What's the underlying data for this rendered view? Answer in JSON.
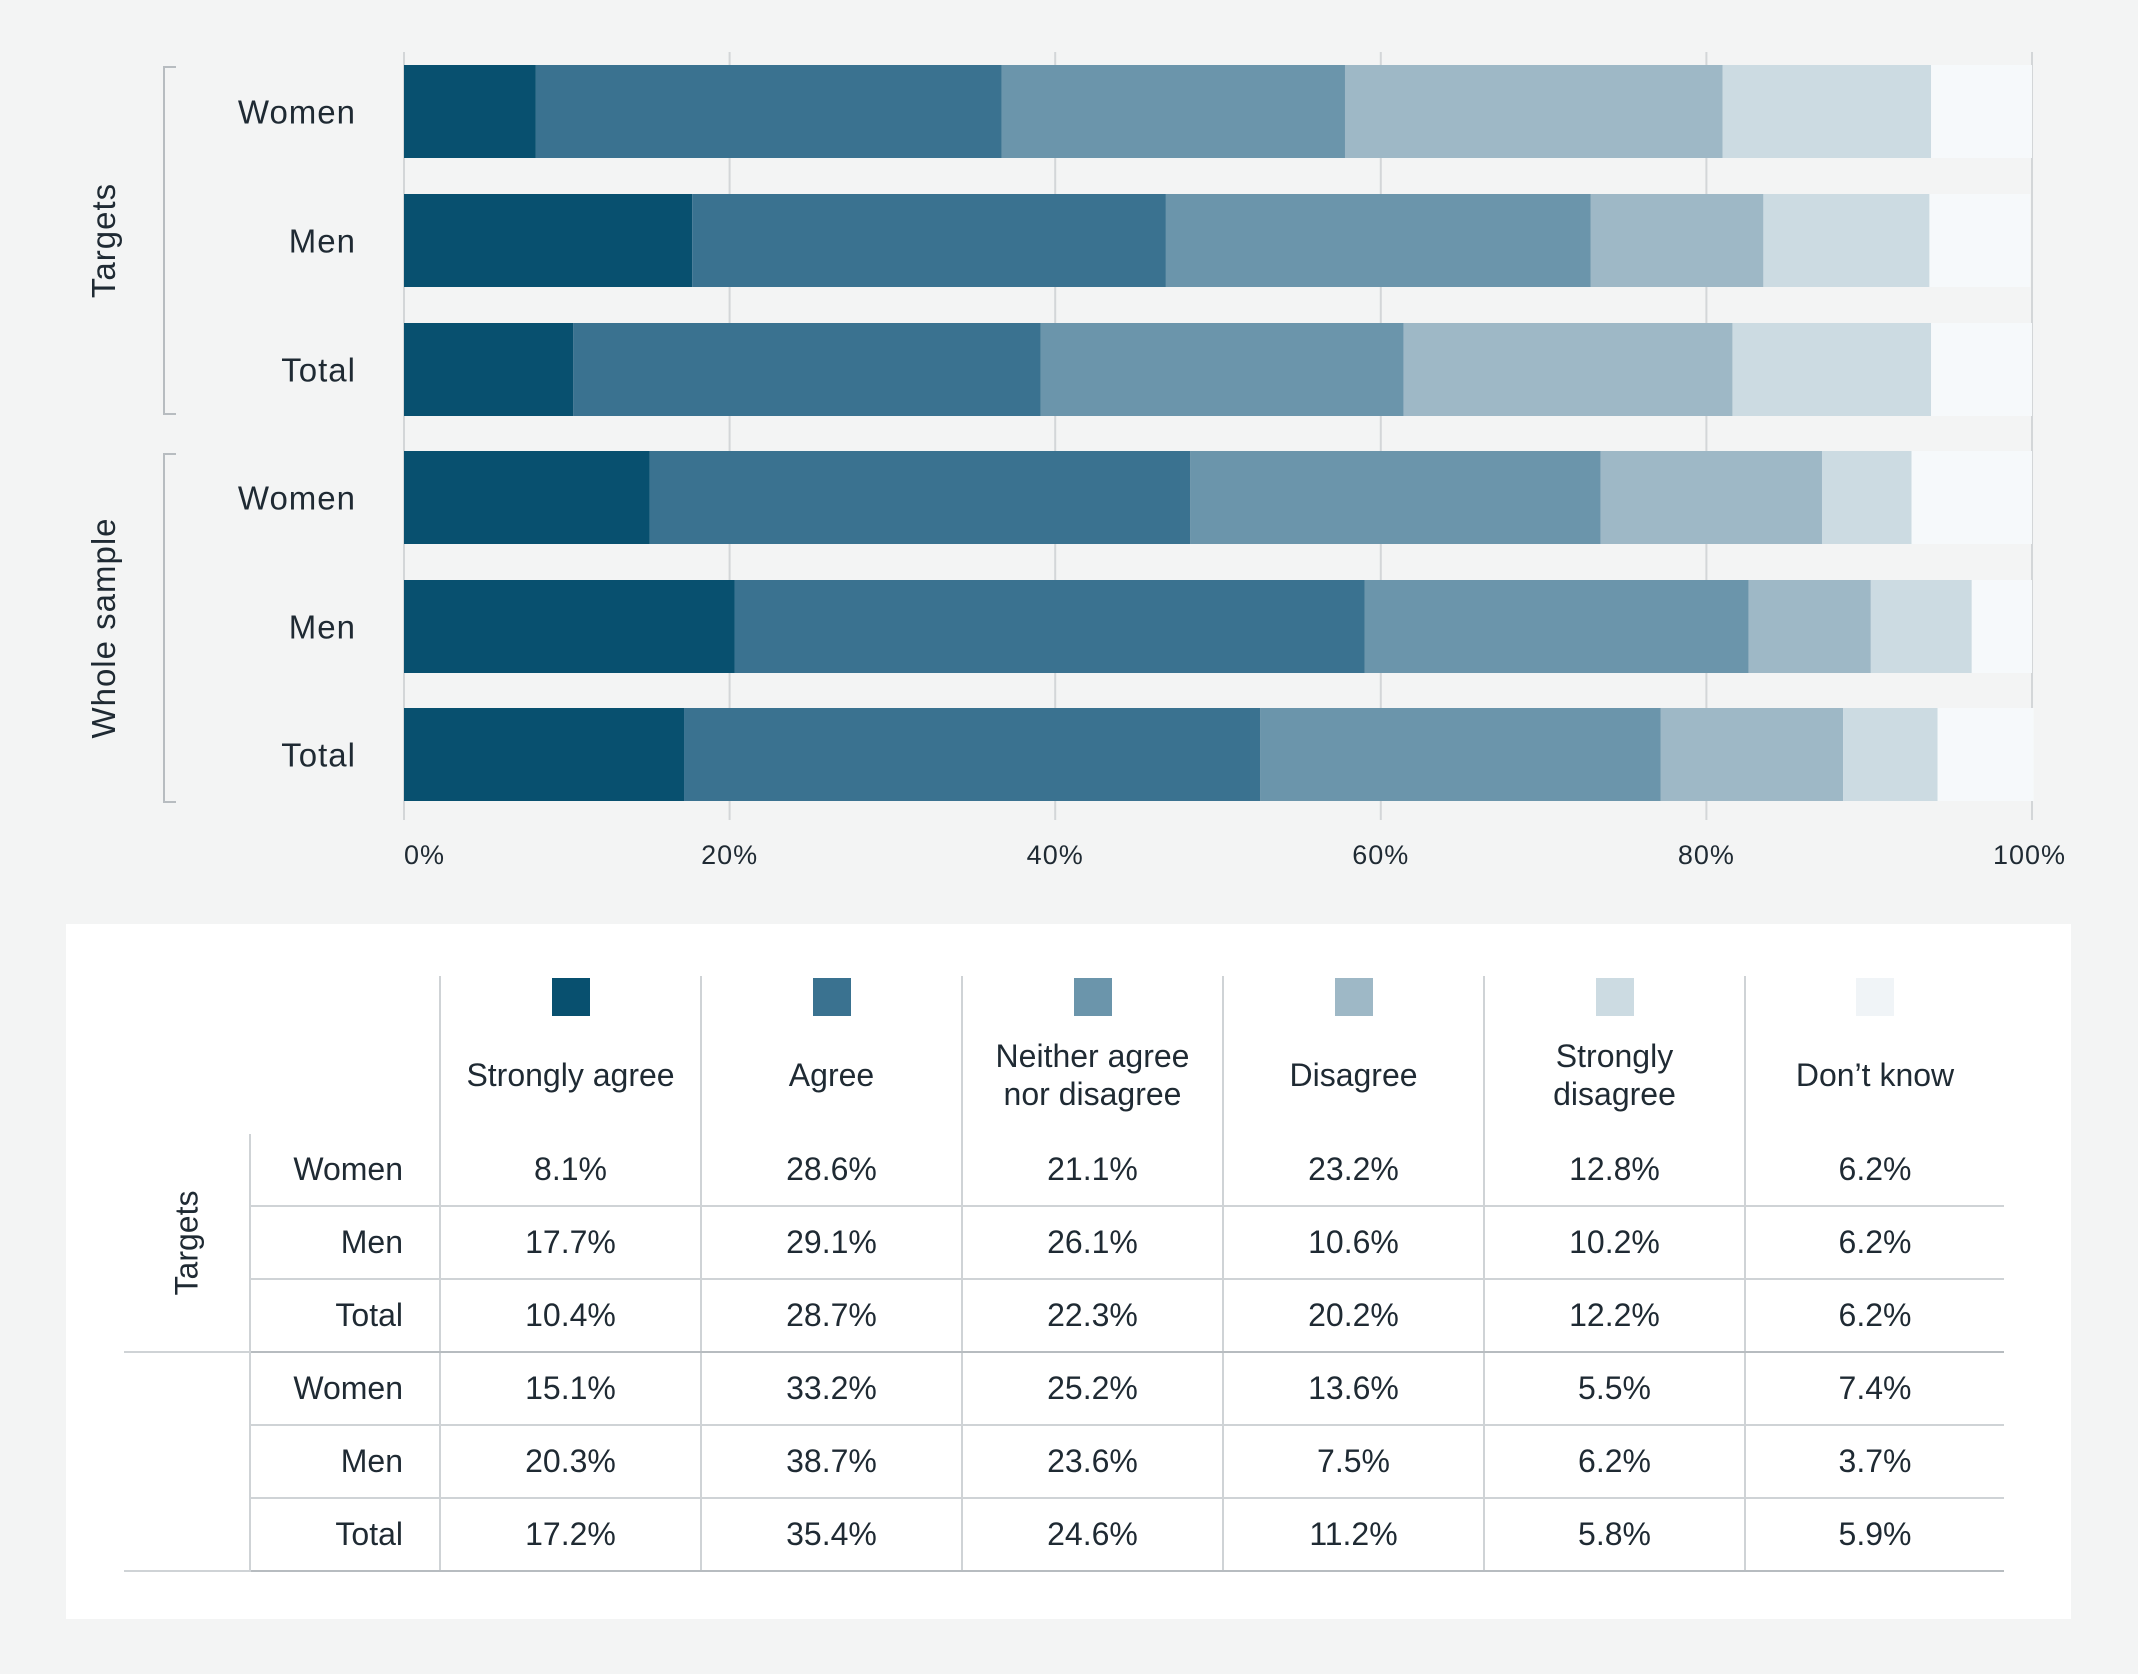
{
  "chart_data": {
    "type": "bar",
    "orientation": "horizontal",
    "stacked": true,
    "xlim": [
      0,
      100
    ],
    "x_ticks": [
      "0%",
      "20%",
      "40%",
      "60%",
      "80%",
      "100%"
    ],
    "groups": [
      {
        "name": "Targets",
        "rows": [
          "Women",
          "Men",
          "Total"
        ]
      },
      {
        "name": "Whole sample",
        "rows": [
          "Women",
          "Men",
          "Total"
        ]
      }
    ],
    "series": [
      {
        "name": "Strongly agree",
        "color": "#08506f",
        "values": [
          8.1,
          17.7,
          10.4,
          15.1,
          20.3,
          17.2
        ]
      },
      {
        "name": "Agree",
        "color": "#3a7290",
        "values": [
          28.6,
          29.1,
          28.7,
          33.2,
          38.7,
          35.4
        ]
      },
      {
        "name": "Neither agree\nnor disagree",
        "color": "#6b95ab",
        "values": [
          21.1,
          26.1,
          22.3,
          25.2,
          23.6,
          24.6
        ]
      },
      {
        "name": "Disagree",
        "color": "#9eb8c6",
        "values": [
          23.2,
          10.6,
          20.2,
          13.6,
          7.5,
          11.2
        ]
      },
      {
        "name": "Strongly\ndisagree",
        "color": "#ccdbe2",
        "values": [
          12.8,
          10.2,
          12.2,
          5.5,
          6.2,
          5.8
        ]
      },
      {
        "name": "Don’t know",
        "color": "#f6f9fb",
        "values": [
          6.2,
          6.2,
          6.2,
          7.4,
          3.7,
          5.9
        ]
      }
    ],
    "table_values": [
      [
        "8.1%",
        "28.6%",
        "21.1%",
        "23.2%",
        "12.8%",
        "6.2%"
      ],
      [
        "17.7%",
        "29.1%",
        "26.1%",
        "10.6%",
        "10.2%",
        "6.2%"
      ],
      [
        "10.4%",
        "28.7%",
        "22.3%",
        "20.2%",
        "12.2%",
        "6.2%"
      ],
      [
        "15.1%",
        "33.2%",
        "25.2%",
        "13.6%",
        "5.5%",
        "7.4%"
      ],
      [
        "20.3%",
        "38.7%",
        "23.6%",
        "7.5%",
        "6.2%",
        "3.7%"
      ],
      [
        "17.2%",
        "35.4%",
        "24.6%",
        "11.2%",
        "5.8%",
        "5.9%"
      ]
    ],
    "table_group_labels": [
      "Targets",
      ""
    ]
  }
}
